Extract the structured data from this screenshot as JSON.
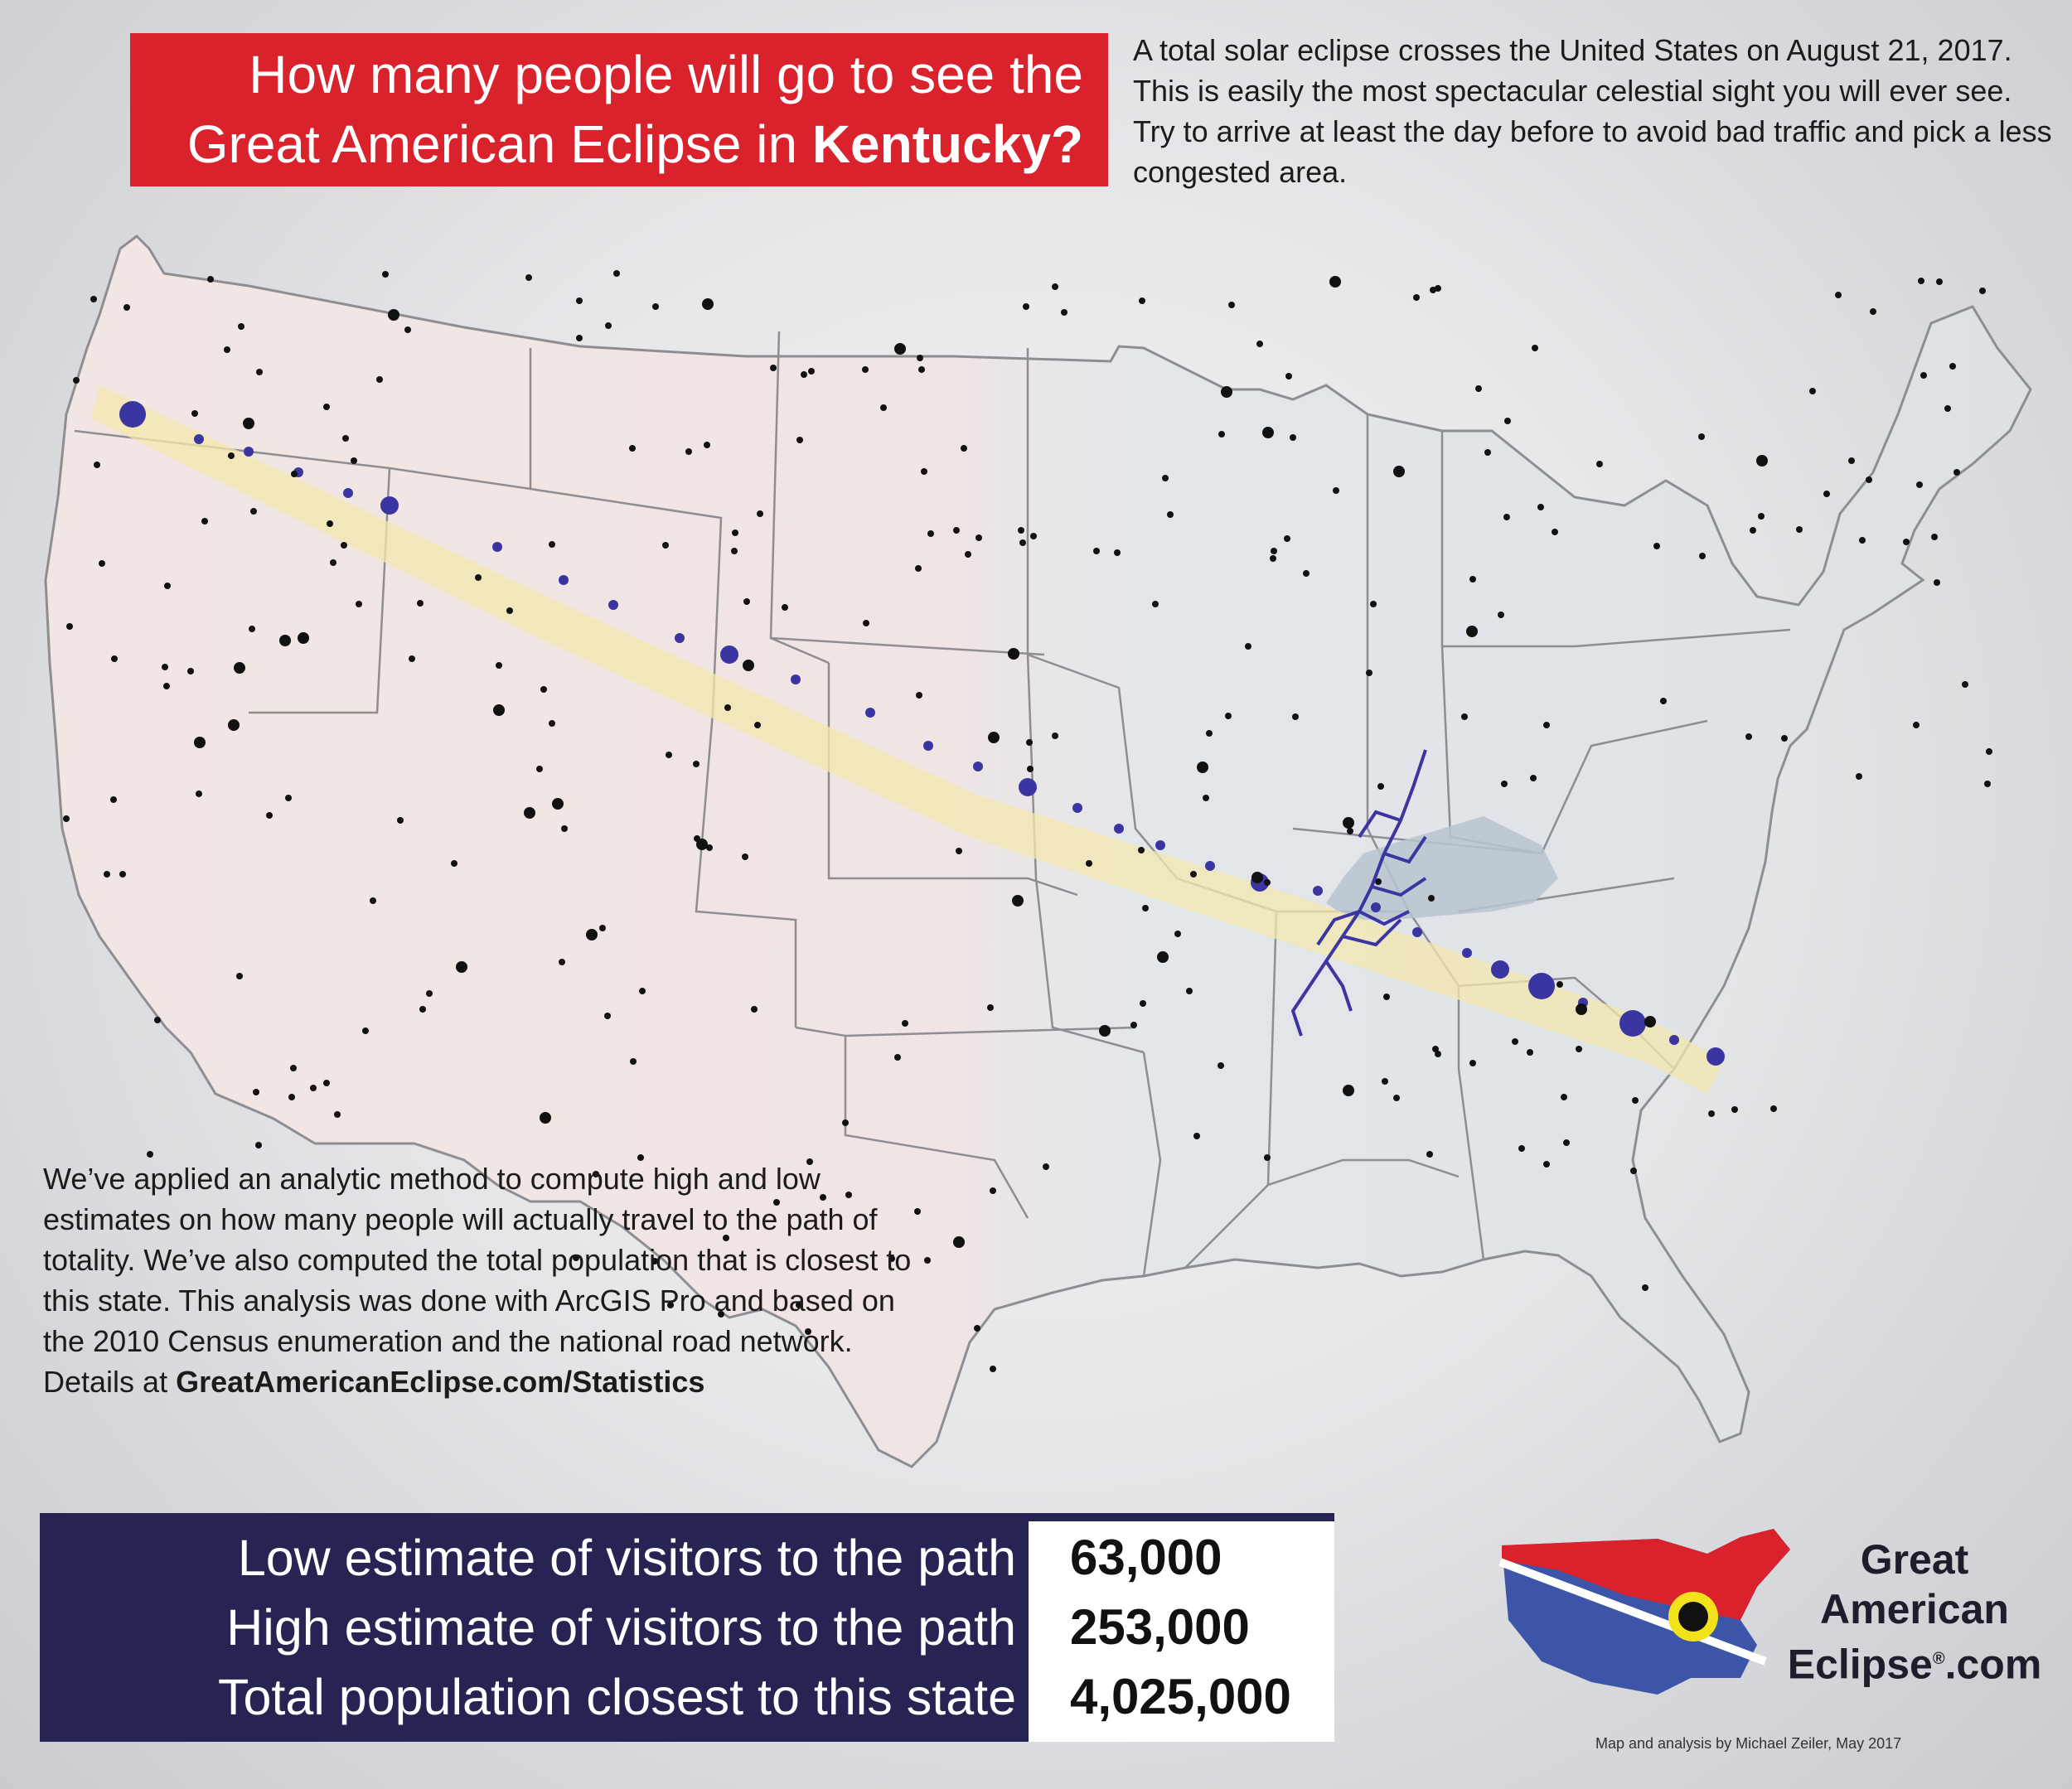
{
  "title": {
    "line1": "How many people will go to see the",
    "line2_prefix": "Great American Eclipse in ",
    "state": "Kentucky?"
  },
  "intro_text": "A total solar eclipse crosses the United States on August 21, 2017. This is easily the most spectacular celestial sight you will ever see. Try to arrive at least the day before to avoid bad traffic and pick a less congested area.",
  "method": {
    "text": "We’ve applied an analytic method to compute high and low estimates on how many people will actually travel to the path of totality. We’ve also computed the total population that is closest to this state. This analysis was done with ArcGIS Pro and based on the 2010 Census enumeration and the national road network. Details at ",
    "link": "GreatAmericanEclipse.com/Statistics"
  },
  "stats": [
    {
      "label": "Low estimate of visitors to the path",
      "value": "63,000"
    },
    {
      "label": "High estimate of visitors to the path",
      "value": "253,000"
    },
    {
      "label": "Total population closest to this state",
      "value": "4,025,000"
    }
  ],
  "logo": {
    "line1": "Great",
    "line2": "American",
    "line3": "Eclipse",
    "registered": "®",
    "suffix": ".com"
  },
  "credit": "Map and analysis by Michael Zeiler, May 2017",
  "colors": {
    "title_bg": "#d9222b",
    "stats_bg": "#262452",
    "path_band": "#f4e9b0",
    "path_dots": "#3a35a0",
    "highlight_state": "#c3ccd6"
  },
  "map": {
    "highlighted_state": "Kentucky",
    "totality_path": "Oregon to South Carolina"
  }
}
